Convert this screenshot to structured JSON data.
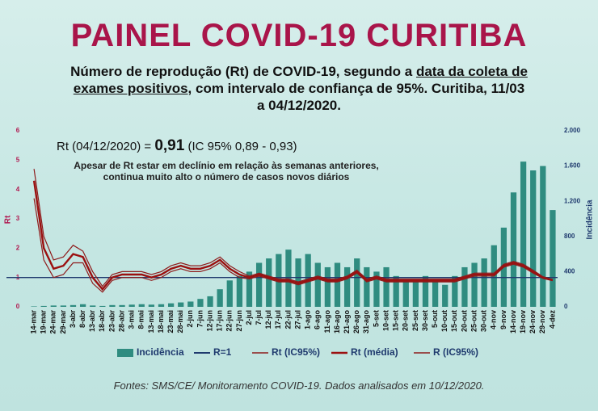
{
  "chart_data": {
    "type": "bar-line",
    "title": "PAINEL COVID-19 CURITIBA",
    "subtitle": [
      "Número de reprodução (Rt) de COVID-19, segundo a ",
      "data da coleta de exames positivos",
      ", com intervalo de confiança de 95%. Curitiba, 11/03 a 04/12/2020."
    ],
    "annotation": [
      "Rt (04/12/2020) = ",
      "0,91",
      " (IC 95% 0,89 - 0,93)"
    ],
    "note": "Apesar de Rt estar em declínio em relação às semanas anteriores, continua muito alto o número de casos novos diários",
    "source": "Fontes: SMS/CE/ Monitoramento COVID-19. Dados analisados em 10/12/2020.",
    "y_label": "Rt",
    "y2_label": "Incidência",
    "categories": [
      "14-mar",
      "19-mar",
      "24-mar",
      "29-mar",
      "3-abr",
      "8-abr",
      "13-abr",
      "18-abr",
      "23-abr",
      "28-abr",
      "3-mai",
      "8-mai",
      "13-mai",
      "18-mai",
      "23-mai",
      "28-mai",
      "2-jun",
      "7-jun",
      "12-jun",
      "17-jun",
      "22-jun",
      "27-jun",
      "2-jul",
      "7-jul",
      "12-jul",
      "17-jul",
      "22-jul",
      "27-jul",
      "1-ago",
      "6-ago",
      "11-ago",
      "16-ago",
      "21-ago",
      "26-ago",
      "31-ago",
      "5-set",
      "10-set",
      "15-set",
      "20-set",
      "25-set",
      "30-set",
      "5-out",
      "10-out",
      "15-out",
      "20-out",
      "25-out",
      "30-out",
      "4-nov",
      "9-nov",
      "14-nov",
      "19-nov",
      "24-nov",
      "29-nov",
      "4-dez"
    ],
    "ylim": [
      0,
      6
    ],
    "yticks": [
      0,
      1,
      2,
      3,
      4,
      5,
      6
    ],
    "y2lim": [
      0,
      2000
    ],
    "y2ticks": [
      0,
      400,
      800,
      {
        "value": 1200,
        "label": "1.200"
      },
      {
        "value": 1600,
        "label": "1.600"
      },
      {
        "value": 2000,
        "label": "2.000"
      }
    ],
    "reference_line": {
      "name": "R=1",
      "value": 1,
      "color": "#1f3a6e"
    },
    "series": [
      {
        "name": "Incidência",
        "type": "bar",
        "axis": "y2",
        "color": "#2f8c80",
        "values": [
          5,
          10,
          15,
          15,
          20,
          30,
          15,
          10,
          20,
          20,
          25,
          30,
          25,
          30,
          40,
          50,
          60,
          90,
          120,
          200,
          300,
          350,
          400,
          500,
          550,
          600,
          650,
          550,
          600,
          500,
          450,
          500,
          450,
          550,
          450,
          400,
          450,
          350,
          300,
          300,
          350,
          300,
          250,
          350,
          450,
          500,
          550,
          700,
          900,
          1300,
          1650,
          1550,
          1600,
          1100
        ]
      },
      {
        "name": "Rt (IC95%)",
        "type": "line",
        "color": "#8e1b1b",
        "values": [
          3.7,
          1.6,
          1.0,
          1.1,
          1.5,
          1.5,
          0.8,
          0.5,
          0.9,
          1.0,
          1.0,
          1.0,
          0.9,
          1.0,
          1.2,
          1.3,
          1.2,
          1.2,
          1.3,
          1.5,
          1.2,
          1.0,
          0.95,
          1.05,
          0.95,
          0.85,
          0.85,
          0.75,
          0.85,
          0.95,
          0.85,
          0.85,
          0.95,
          1.15,
          0.85,
          0.95,
          0.85,
          0.85,
          0.85,
          0.85,
          0.85,
          0.85,
          0.85,
          0.85,
          0.95,
          1.05,
          1.05,
          1.05,
          1.35,
          1.45,
          1.35,
          1.15,
          0.97,
          0.89
        ]
      },
      {
        "name": "Rt (média)",
        "type": "line",
        "color": "#9b1010",
        "values": [
          4.3,
          2.0,
          1.3,
          1.4,
          1.8,
          1.7,
          1.0,
          0.6,
          1.0,
          1.1,
          1.1,
          1.1,
          1.0,
          1.1,
          1.3,
          1.4,
          1.3,
          1.3,
          1.4,
          1.6,
          1.3,
          1.1,
          1.0,
          1.1,
          1.0,
          0.9,
          0.9,
          0.8,
          0.9,
          1.0,
          0.9,
          0.9,
          1.0,
          1.2,
          0.9,
          1.0,
          0.9,
          0.9,
          0.9,
          0.9,
          0.9,
          0.9,
          0.9,
          0.9,
          1.0,
          1.1,
          1.1,
          1.1,
          1.4,
          1.5,
          1.4,
          1.2,
          1.0,
          0.91
        ]
      },
      {
        "name": "R (IC95%)",
        "type": "line",
        "color": "#8e1b1b",
        "values": [
          4.7,
          2.4,
          1.6,
          1.7,
          2.1,
          1.9,
          1.2,
          0.7,
          1.1,
          1.2,
          1.2,
          1.2,
          1.1,
          1.2,
          1.4,
          1.5,
          1.4,
          1.4,
          1.5,
          1.7,
          1.4,
          1.2,
          1.05,
          1.15,
          1.05,
          0.95,
          0.95,
          0.85,
          0.95,
          1.05,
          0.95,
          0.95,
          1.05,
          1.25,
          0.95,
          1.05,
          0.95,
          0.95,
          0.95,
          0.95,
          0.95,
          0.95,
          0.95,
          0.95,
          1.05,
          1.15,
          1.15,
          1.15,
          1.45,
          1.55,
          1.45,
          1.25,
          1.03,
          0.93
        ]
      }
    ]
  }
}
